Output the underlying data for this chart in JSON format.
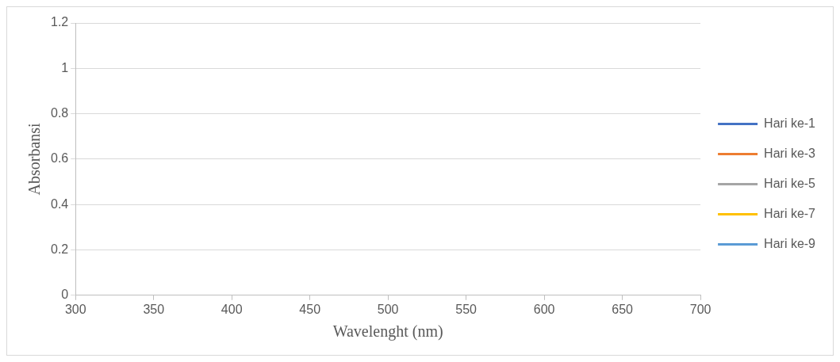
{
  "chart_data": {
    "type": "line",
    "xlabel": "Wavelenght (nm)",
    "ylabel": "Absorbansi",
    "categories": [
      "300",
      "350",
      "400",
      "450",
      "500",
      "550",
      "600",
      "650",
      "700"
    ],
    "ylim": [
      0,
      1.2
    ],
    "yticks": [
      0,
      0.2,
      0.4,
      0.6,
      0.8,
      1,
      1.2
    ],
    "grid": "y",
    "legend": "right",
    "marker": "none",
    "series": [
      {
        "name": "Hari ke-1",
        "color": "#4472c4",
        "values": [
          null,
          null,
          null,
          null,
          null,
          null,
          null,
          null,
          null
        ]
      },
      {
        "name": "Hari ke-3",
        "color": "#ed7d31",
        "values": [
          null,
          null,
          null,
          null,
          null,
          null,
          null,
          null,
          null
        ]
      },
      {
        "name": "Hari ke-5",
        "color": "#a5a5a5",
        "values": [
          null,
          null,
          null,
          null,
          null,
          null,
          null,
          null,
          null
        ]
      },
      {
        "name": "Hari ke-7",
        "color": "#ffc000",
        "values": [
          null,
          null,
          null,
          null,
          null,
          null,
          null,
          null,
          null
        ]
      },
      {
        "name": "Hari ke-9",
        "color": "#5b9bd5",
        "values": [
          null,
          null,
          null,
          null,
          null,
          null,
          null,
          null,
          null
        ]
      }
    ]
  }
}
